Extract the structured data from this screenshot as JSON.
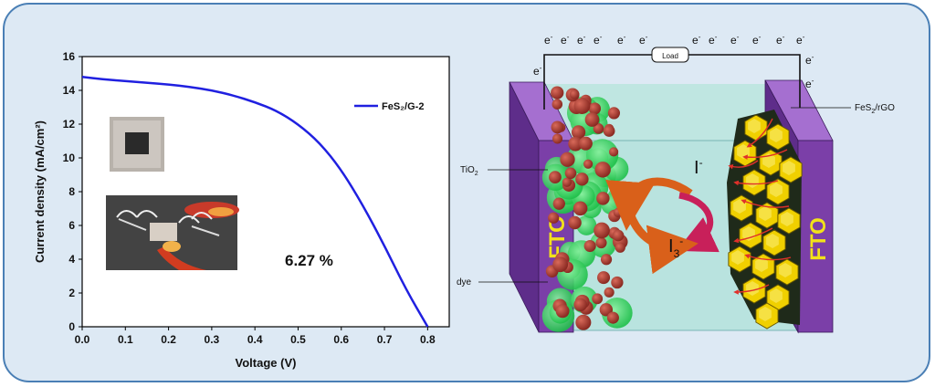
{
  "colors": {
    "panel_fill": "#dde9f4",
    "panel_border": "#4a7fb5",
    "curve": "#2020e0",
    "fto_glass": "#7b3fa8",
    "fto_text": "#f2e21a",
    "electrolyte": "#b9e3df",
    "tio2_red": "#a33a2e",
    "dye_green": "#39e06a",
    "fes2_yellow": "#f0d000",
    "arrow_orange": "#d9601a",
    "arrow_magenta": "#c8205a",
    "electron_path": "#e0302a"
  },
  "chart_data": {
    "type": "line",
    "xlabel": "Voltage (V)",
    "ylabel": "Current density (mA/cm²)",
    "xlim": [
      0,
      0.85
    ],
    "ylim": [
      0,
      16
    ],
    "xticks": [
      "0.0",
      "0.1",
      "0.2",
      "0.3",
      "0.4",
      "0.5",
      "0.6",
      "0.7",
      "0.8"
    ],
    "yticks": [
      "0",
      "2",
      "4",
      "6",
      "8",
      "10",
      "12",
      "14",
      "16"
    ],
    "grid": false,
    "legend_position": "top-right",
    "series": [
      {
        "name": "FeS₂/G-2",
        "x": [
          0.0,
          0.05,
          0.1,
          0.15,
          0.2,
          0.25,
          0.3,
          0.35,
          0.4,
          0.45,
          0.5,
          0.55,
          0.6,
          0.65,
          0.7,
          0.75,
          0.8
        ],
        "y": [
          14.8,
          14.65,
          14.55,
          14.45,
          14.35,
          14.2,
          14.0,
          13.7,
          13.3,
          12.8,
          12.0,
          10.9,
          9.3,
          7.2,
          4.8,
          2.2,
          0.0
        ]
      }
    ],
    "annotation": "6.27 %"
  },
  "diagram": {
    "fto_label": "FTO",
    "load_label": "Load",
    "electron": "e",
    "electron_sup": "-",
    "tio2_label": "TiO",
    "tio2_sub": "2",
    "dye_label": "dye",
    "fes2_label_pre": "FeS",
    "fes2_label_sub": "2",
    "fes2_label_post": "/rGO",
    "iodide_label": "I",
    "iodide_sup": "-",
    "triiodide_label": "I",
    "triiodide_sub": "3",
    "triiodide_sup": "-"
  }
}
